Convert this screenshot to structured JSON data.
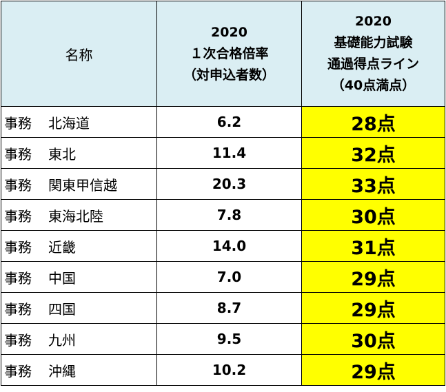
{
  "headers": {
    "name": "名称",
    "ratio": [
      "2020",
      "１次合格倍率",
      "（対申込者数）"
    ],
    "score": [
      "2020",
      "基礎能力試験",
      "通過得点ライン",
      "（40点満点）"
    ]
  },
  "rows": [
    {
      "category": "事務",
      "region": "北海道",
      "ratio": "6.2",
      "score": "28点"
    },
    {
      "category": "事務",
      "region": "東北",
      "ratio": "11.4",
      "score": "32点"
    },
    {
      "category": "事務",
      "region": "関東甲信越",
      "ratio": "20.3",
      "score": "33点"
    },
    {
      "category": "事務",
      "region": "東海北陸",
      "ratio": "7.8",
      "score": "30点"
    },
    {
      "category": "事務",
      "region": "近畿",
      "ratio": "14.0",
      "score": "31点"
    },
    {
      "category": "事務",
      "region": "中国",
      "ratio": "7.0",
      "score": "29点"
    },
    {
      "category": "事務",
      "region": "四国",
      "ratio": "8.7",
      "score": "29点"
    },
    {
      "category": "事務",
      "region": "九州",
      "ratio": "9.5",
      "score": "30点"
    },
    {
      "category": "事務",
      "region": "沖縄",
      "ratio": "10.2",
      "score": "29点"
    }
  ],
  "colors": {
    "header_bg": "#daeef3",
    "score_bg": "#ffff00",
    "border": "#000000"
  }
}
